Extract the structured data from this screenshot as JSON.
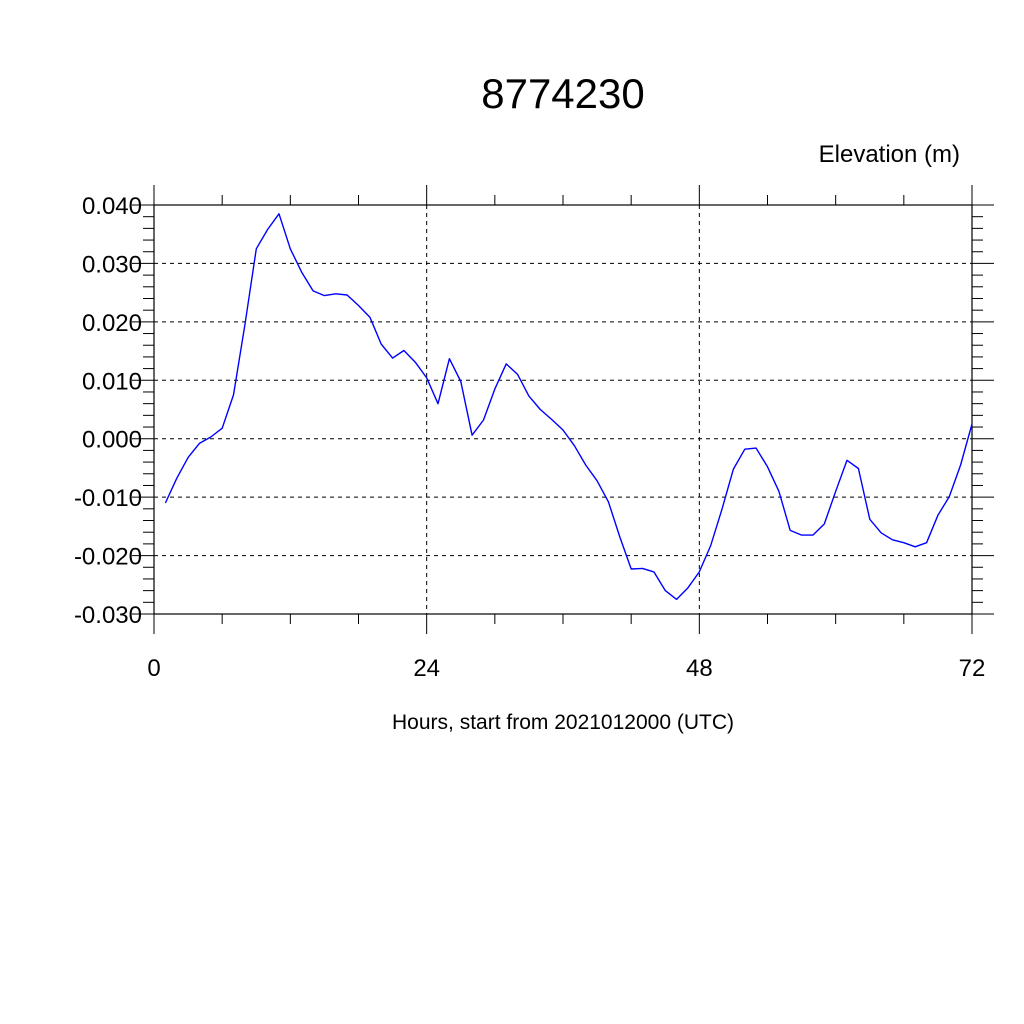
{
  "chart_data": {
    "type": "line",
    "title": "8774230",
    "units_label": "Elevation (m)",
    "xlabel": "Hours, start from 2021012000 (UTC)",
    "xlim": [
      0,
      72
    ],
    "ylim": [
      -0.03,
      0.04
    ],
    "x_ticks": [
      0,
      24,
      48,
      72
    ],
    "x_tick_labels": [
      "0",
      "24",
      "48",
      "72"
    ],
    "y_ticks": [
      -0.03,
      -0.02,
      -0.01,
      0.0,
      0.01,
      0.02,
      0.03,
      0.04
    ],
    "y_tick_labels": [
      "-0.030",
      "-0.020",
      "-0.010",
      "0.000",
      "0.010",
      "0.020",
      "0.030",
      "0.040"
    ],
    "grid": true,
    "line_color": "#0000ff",
    "series": [
      {
        "x": [
          1,
          2,
          3,
          4,
          5,
          6,
          7,
          8,
          9,
          10,
          11,
          12,
          13,
          14,
          15,
          16,
          17,
          18,
          19,
          20,
          21,
          22,
          23,
          24,
          25,
          26,
          27,
          28,
          29,
          30,
          31,
          32,
          33,
          34,
          35,
          36,
          37,
          38,
          39,
          40,
          41,
          42,
          43,
          44,
          45,
          46,
          47,
          48,
          49,
          50,
          51,
          52,
          53,
          54,
          55,
          56,
          57,
          58,
          59,
          60,
          61,
          62,
          63,
          64,
          65,
          66,
          67,
          68,
          69,
          70,
          71,
          72
        ],
        "y": [
          -0.011,
          -0.0068,
          -0.0032,
          -0.0008,
          0.0003,
          0.0018,
          0.0075,
          0.0195,
          0.0325,
          0.0358,
          0.0385,
          0.0325,
          0.0285,
          0.0253,
          0.0245,
          0.0248,
          0.0246,
          0.0228,
          0.0208,
          0.0162,
          0.0138,
          0.0151,
          0.0131,
          0.0104,
          0.006,
          0.0137,
          0.0098,
          0.0006,
          0.0032,
          0.0085,
          0.0128,
          0.011,
          0.0073,
          0.005,
          0.0033,
          0.0015,
          -0.0012,
          -0.0045,
          -0.0072,
          -0.0108,
          -0.0168,
          -0.0223,
          -0.0222,
          -0.0228,
          -0.026,
          -0.0275,
          -0.0255,
          -0.0228,
          -0.0183,
          -0.012,
          -0.0052,
          -0.0018,
          -0.0016,
          -0.0048,
          -0.009,
          -0.0157,
          -0.0165,
          -0.0165,
          -0.0146,
          -0.009,
          -0.0037,
          -0.0051,
          -0.0138,
          -0.0161,
          -0.0173,
          -0.0178,
          -0.0185,
          -0.0178,
          -0.0131,
          -0.0099,
          -0.0045,
          0.0025
        ]
      }
    ]
  }
}
